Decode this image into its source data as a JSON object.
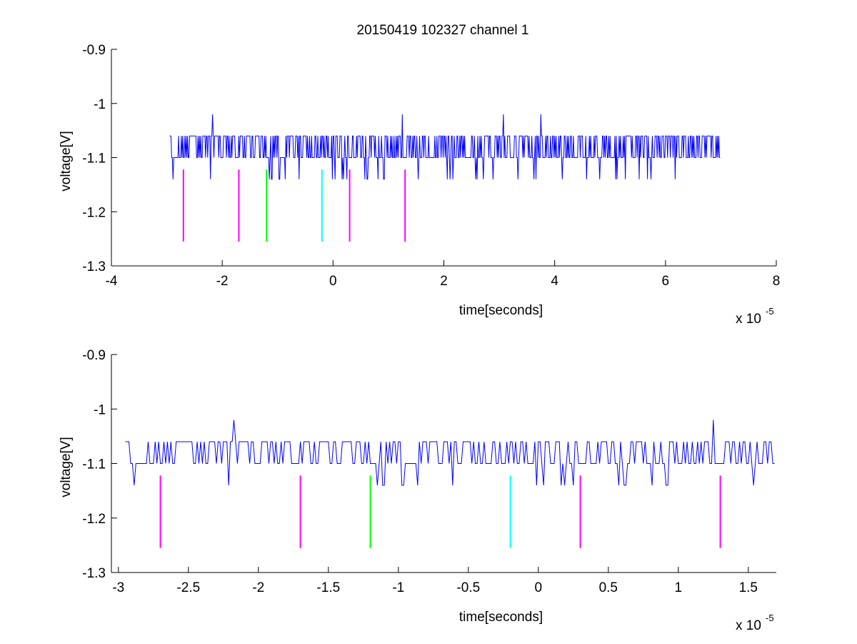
{
  "title": "20150419 102327 channel 1",
  "chart_data": [
    {
      "type": "line",
      "ylabel": "voltage[V]",
      "xlabel": "time[seconds]",
      "x_exponent_label": "x 10",
      "x_exponent": "-5",
      "xlim": [
        -4,
        8
      ],
      "ylim": [
        -1.3,
        -0.9
      ],
      "xticks": [
        "-4",
        "-2",
        "0",
        "2",
        "4",
        "6",
        "8"
      ],
      "yticks": [
        "-0.9",
        "-1",
        "-1.1",
        "-1.2",
        "-1.3"
      ],
      "grid": false,
      "signal": {
        "color": "#0000ff",
        "x_range": [
          -2.95,
          7.0
        ],
        "baseline": -1.1,
        "levels": [
          -1.02,
          -1.06,
          -1.1,
          -1.14
        ]
      },
      "markers": [
        {
          "x": -2.7,
          "color": "#ff00ff"
        },
        {
          "x": -1.7,
          "color": "#ff00ff"
        },
        {
          "x": -1.2,
          "color": "#00ff00"
        },
        {
          "x": -0.2,
          "color": "#00ffff"
        },
        {
          "x": 0.3,
          "color": "#ff00ff"
        },
        {
          "x": 1.3,
          "color": "#ff00ff"
        }
      ],
      "marker_range": [
        -1.122,
        -1.255
      ]
    },
    {
      "type": "line",
      "ylabel": "voltage[V]",
      "xlabel": "time[seconds]",
      "x_exponent_label": "x 10",
      "x_exponent": "-5",
      "xlim": [
        -3.05,
        1.7
      ],
      "ylim": [
        -1.3,
        -0.9
      ],
      "xticks": [
        "-3",
        "-2.5",
        "-2",
        "-1.5",
        "-1",
        "-0.5",
        "0",
        "0.5",
        "1",
        "1.5"
      ],
      "yticks": [
        "-0.9",
        "-1",
        "-1.1",
        "-1.2",
        "-1.3"
      ],
      "grid": false,
      "signal": {
        "color": "#0000ff",
        "x_range": [
          -2.95,
          1.7
        ],
        "baseline": -1.1,
        "levels": [
          -1.02,
          -1.06,
          -1.1,
          -1.14
        ]
      },
      "markers": [
        {
          "x": -2.7,
          "color": "#ff00ff"
        },
        {
          "x": -1.7,
          "color": "#ff00ff"
        },
        {
          "x": -1.2,
          "color": "#00ff00"
        },
        {
          "x": -0.2,
          "color": "#00ffff"
        },
        {
          "x": 0.3,
          "color": "#ff00ff"
        },
        {
          "x": 1.3,
          "color": "#ff00ff"
        }
      ],
      "marker_range": [
        -1.122,
        -1.255
      ]
    }
  ]
}
